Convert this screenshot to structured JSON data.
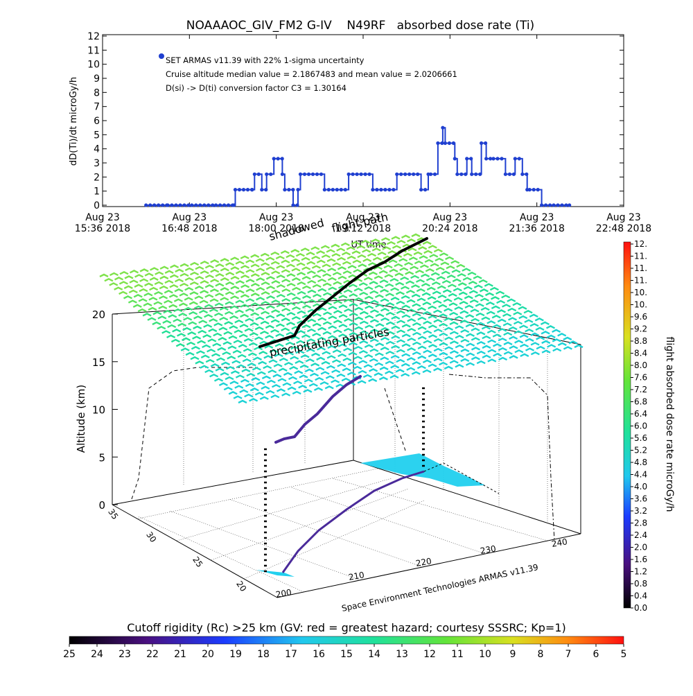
{
  "chart_data": [
    {
      "type": "line",
      "title": "NOAAAOC_GIV_FM2 G-IV    N49RF   absorbed dose rate (Ti)",
      "ylabel": "dD(Ti)/dt microGy/h",
      "ylim": [
        0,
        12
      ],
      "y_ticks": [
        "0",
        "1",
        "2",
        "3",
        "4",
        "5",
        "6",
        "7",
        "8",
        "9",
        "10",
        "11",
        "12"
      ],
      "x_ticks": [
        {
          "date": "Aug 23",
          "time": "15:36 2018"
        },
        {
          "date": "Aug 23",
          "time": "16:48 2018"
        },
        {
          "date": "Aug 23",
          "time": "18:00 2018"
        },
        {
          "date": "Aug 23",
          "time": "19:12 2018"
        },
        {
          "date": "Aug 23",
          "time": "20:24 2018"
        },
        {
          "date": "Aug 23",
          "time": "21:36 2018"
        },
        {
          "date": "Aug 23",
          "time": "22:48 2018"
        }
      ],
      "xlim": [
        "15:36",
        "22:48"
      ],
      "xlabel": "UT time",
      "legend": {
        "series": "SET ARMAS v11.39 with 22% 1-sigma uncertainty",
        "notes": [
          "Cruise altitude median value = 2.1867483 and mean value = 2.0206661",
          "D(si) -> D(ti) conversion factor C3 = 1.30164"
        ]
      },
      "series": [
        {
          "name": "SET ARMAS v11.39 with 22% 1-sigma uncertainty",
          "color": "#1f3fd0",
          "x": [
            "16:12",
            "16:30",
            "16:50",
            "17:10",
            "17:25",
            "17:26",
            "17:40",
            "17:42",
            "17:48",
            "17:52",
            "17:58",
            "18:05",
            "18:07",
            "18:14",
            "18:18",
            "18:20",
            "18:40",
            "19:00",
            "19:20",
            "19:40",
            "20:00",
            "20:06",
            "20:08",
            "20:14",
            "20:18",
            "20:20",
            "20:28",
            "20:30",
            "20:38",
            "20:42",
            "20:50",
            "20:54",
            "21:00",
            "21:10",
            "21:18",
            "21:24",
            "21:28",
            "21:30",
            "21:40",
            "21:50",
            "22:03"
          ],
          "y": [
            0,
            0,
            0,
            0,
            0,
            1.1,
            1.1,
            2.2,
            1.1,
            2.2,
            3.3,
            2.2,
            1.1,
            0,
            1.1,
            2.2,
            1.1,
            2.2,
            1.1,
            2.2,
            1.1,
            2.2,
            2.2,
            4.4,
            5.5,
            4.4,
            3.3,
            2.2,
            3.3,
            2.2,
            4.4,
            3.3,
            3.3,
            2.2,
            3.3,
            2.2,
            1.1,
            1.1,
            0,
            0,
            0
          ]
        }
      ]
    },
    {
      "type": "scatter",
      "subtype": "3d-flight-track",
      "ylabel": "Altitude (km)",
      "z_ticks": [
        "0",
        "5",
        "10",
        "15",
        "20"
      ],
      "x_ticks": [
        "200",
        "210",
        "220",
        "230",
        "240"
      ],
      "y_ticks": [
        "20",
        "25",
        "30",
        "35"
      ],
      "annotations": [
        "shadowed",
        "flight path",
        "UT time",
        "precipitating particles"
      ],
      "credit": "Space Environment Technologies ARMAS v11.39",
      "colorbar": {
        "label": "flight absorbed dose rate microGy/h",
        "ticks": [
          "0.0",
          "0.4",
          "0.8",
          "1.2",
          "1.6",
          "2.0",
          "2.4",
          "2.8",
          "3.2",
          "3.6",
          "4.0",
          "4.4",
          "4.8",
          "5.2",
          "5.6",
          "6.0",
          "6.4",
          "6.8",
          "7.2",
          "7.6",
          "8.0",
          "8.4",
          "8.8",
          "9.2",
          "9.6",
          "10.",
          "10.",
          "11.",
          "11.",
          "11.",
          "12."
        ]
      }
    }
  ],
  "bottom_colorbar": {
    "label": "Cutoff rigidity (Rc) >25 km (GV: red = greatest hazard; courtesy SSSRC; Kp=1)",
    "ticks": [
      "25",
      "24",
      "23",
      "22",
      "21",
      "20",
      "19",
      "18",
      "17",
      "16",
      "15",
      "14",
      "13",
      "12",
      "11",
      "10",
      "9",
      "8",
      "7",
      "6",
      "5"
    ]
  }
}
